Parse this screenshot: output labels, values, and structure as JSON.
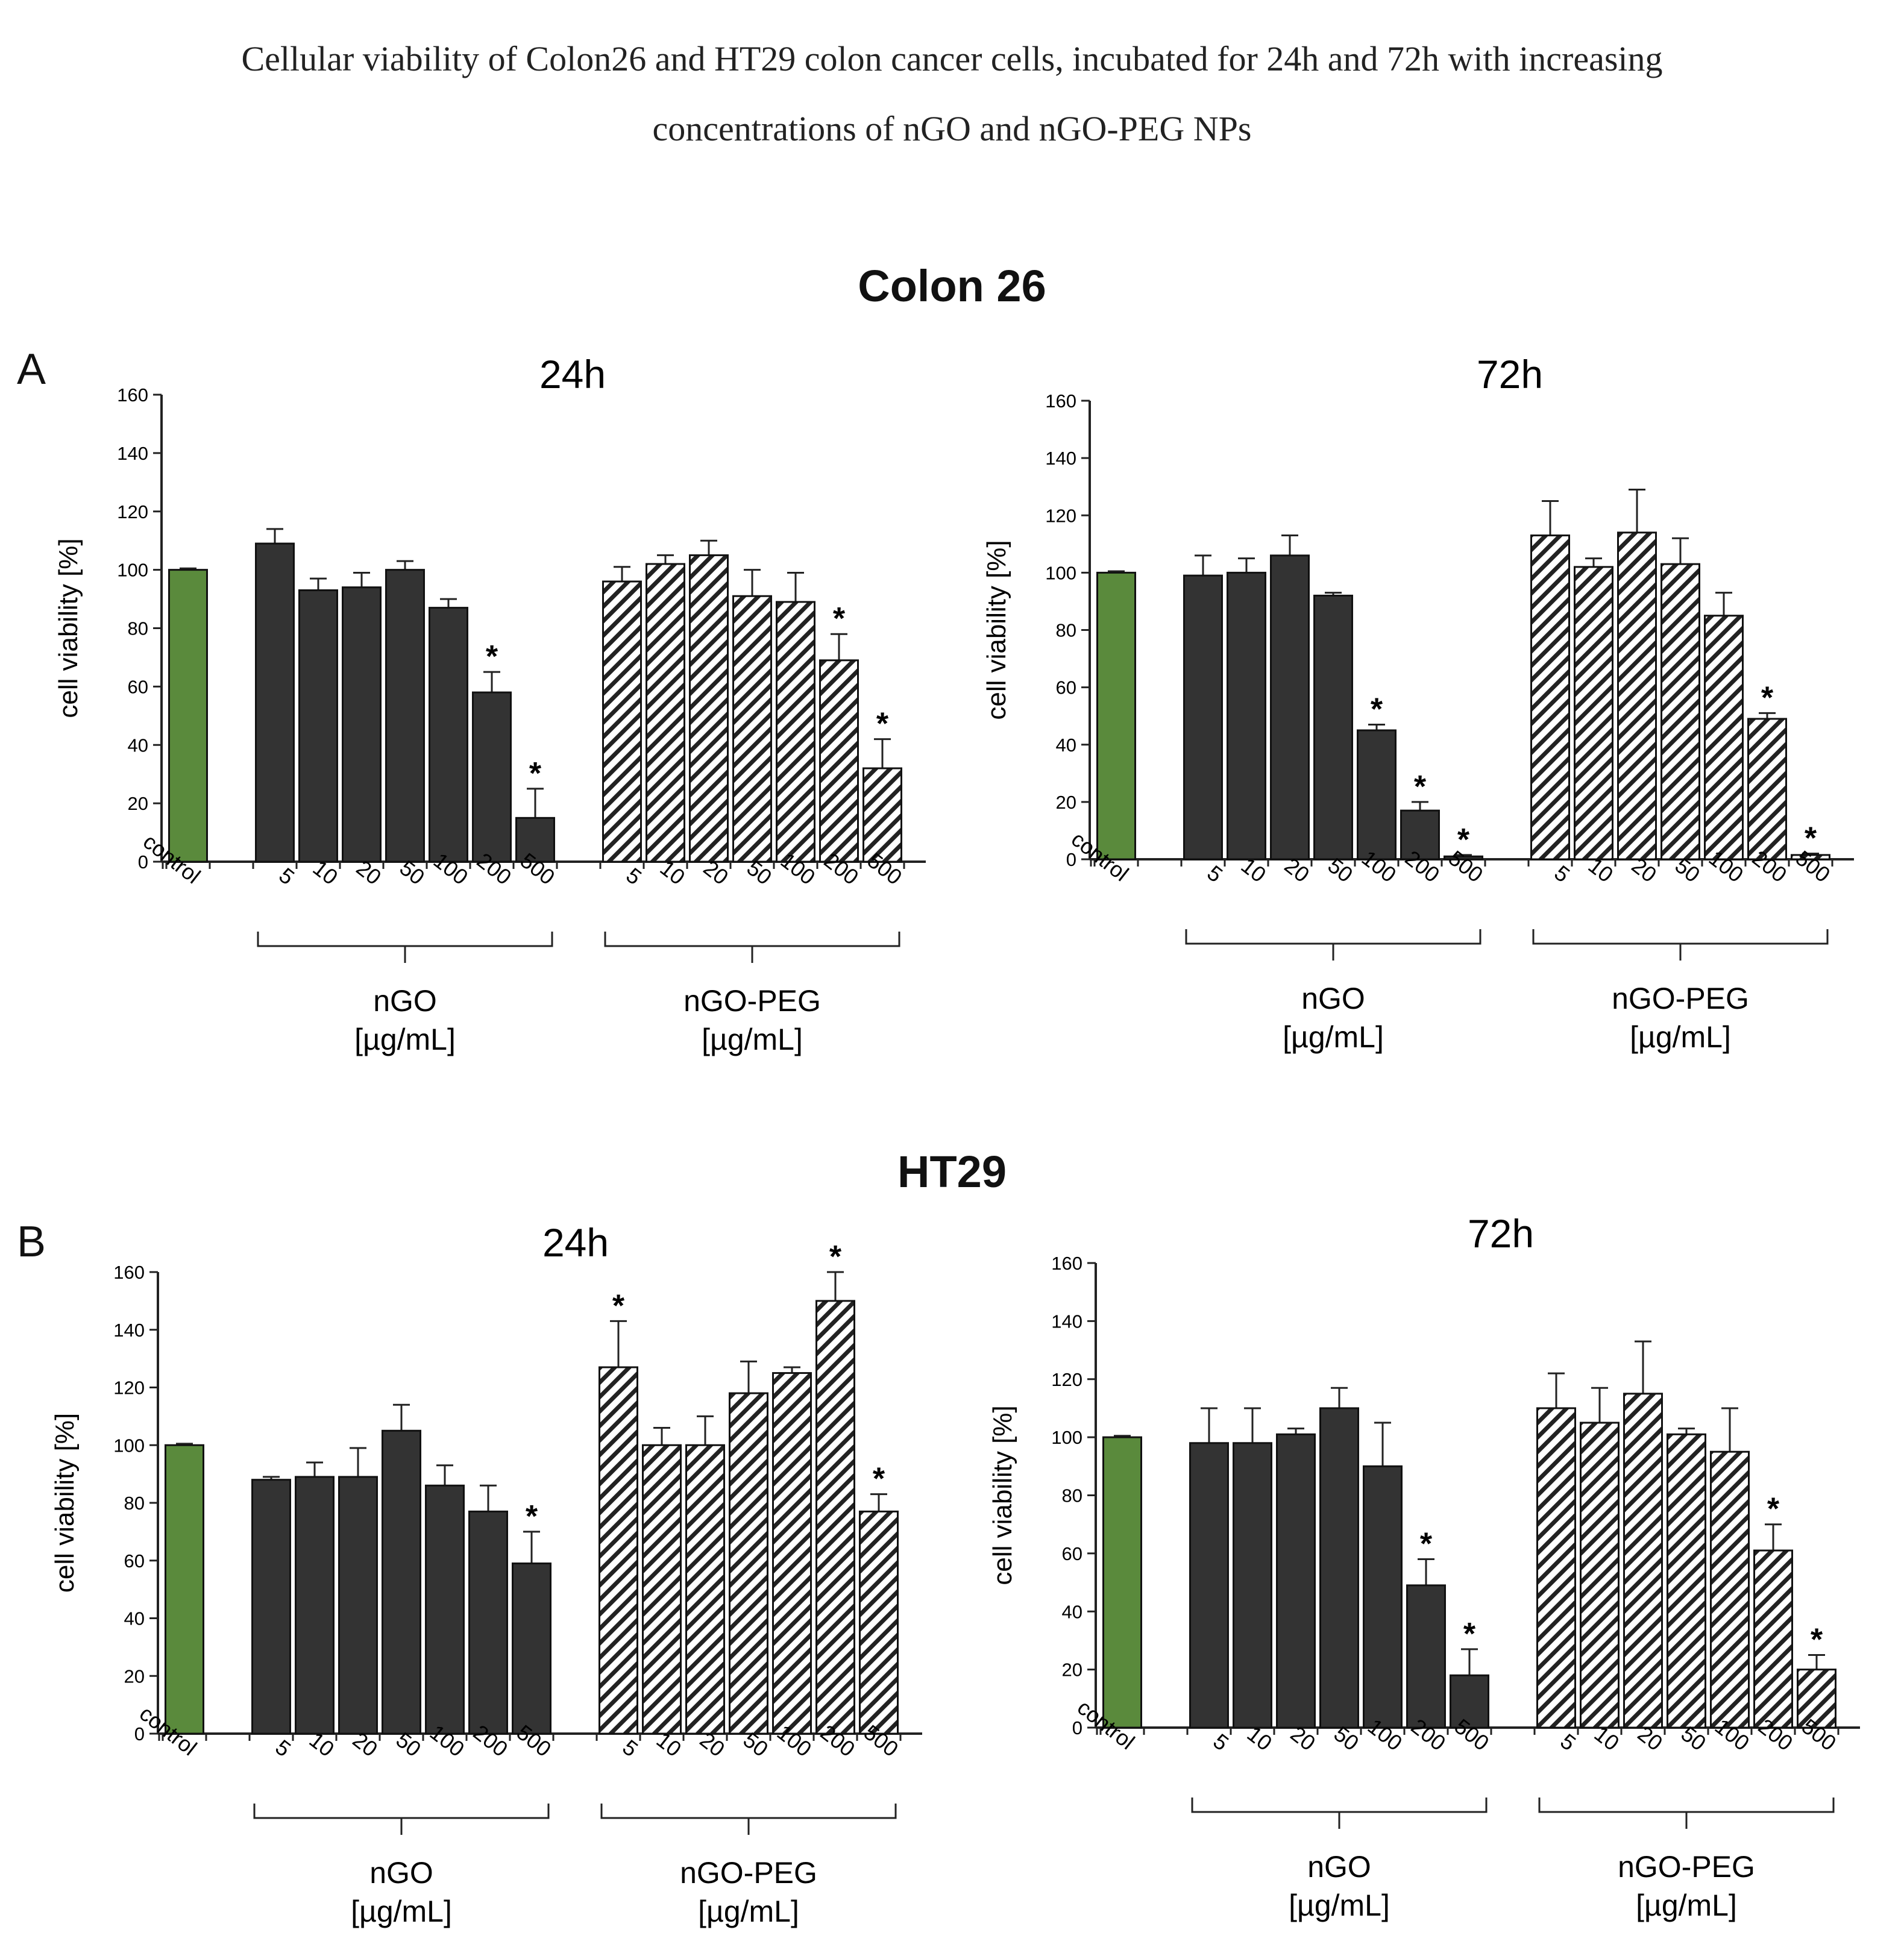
{
  "figure_title": [
    "Cellular viability of Colon26 and HT29 colon cancer cells, incubated for 24h and 72h with increasing",
    "concentrations of nGO and nGO-PEG NPs"
  ],
  "sections": [
    {
      "label": "A",
      "title": "Colon 26"
    },
    {
      "label": "B",
      "title": "HT29"
    }
  ],
  "colors": {
    "control": "#5a8a3c",
    "nGO": "#333333",
    "nGO_PEG_fill": "#ffffff",
    "nGO_PEG_hatch": "#222222",
    "axis": "#222222"
  },
  "chart_data": [
    {
      "id": "colon26-24h",
      "type": "bar",
      "title": "24h",
      "ylabel": "cell viability [%]",
      "ylim": [
        0,
        160
      ],
      "yticks": [
        "0",
        "20",
        "40",
        "60",
        "80",
        "100",
        "120",
        "140",
        "160"
      ],
      "control": {
        "label": "control",
        "value": 100,
        "err": 0.5
      },
      "groups": [
        {
          "name": "nGO",
          "unit": "[µg/mL]",
          "pattern": "solid",
          "categories": [
            "5",
            "10",
            "20",
            "50",
            "100",
            "200",
            "500"
          ],
          "values": [
            109,
            93,
            94,
            100,
            87,
            58,
            15
          ],
          "errors": [
            5,
            4,
            5,
            3,
            3,
            7,
            10
          ],
          "significant": [
            false,
            false,
            false,
            false,
            false,
            true,
            true
          ]
        },
        {
          "name": "nGO-PEG",
          "unit": "[µg/mL]",
          "pattern": "hatch",
          "categories": [
            "5",
            "10",
            "20",
            "50",
            "100",
            "200",
            "500"
          ],
          "values": [
            96,
            102,
            105,
            91,
            89,
            69,
            32
          ],
          "errors": [
            5,
            3,
            5,
            9,
            10,
            9,
            10
          ],
          "significant": [
            false,
            false,
            false,
            false,
            false,
            true,
            true
          ]
        }
      ]
    },
    {
      "id": "colon26-72h",
      "type": "bar",
      "title": "72h",
      "ylabel": "cell viability [%]",
      "ylim": [
        0,
        160
      ],
      "yticks": [
        "0",
        "20",
        "40",
        "60",
        "80",
        "100",
        "120",
        "140",
        "160"
      ],
      "control": {
        "label": "control",
        "value": 100,
        "err": 0.5
      },
      "groups": [
        {
          "name": "nGO",
          "unit": "[µg/mL]",
          "pattern": "solid",
          "categories": [
            "5",
            "10",
            "20",
            "50",
            "100",
            "200",
            "500"
          ],
          "values": [
            99,
            100,
            106,
            92,
            45,
            17,
            1
          ],
          "errors": [
            7,
            5,
            7,
            1,
            2,
            3,
            0.5
          ],
          "significant": [
            false,
            false,
            false,
            false,
            true,
            true,
            true
          ]
        },
        {
          "name": "nGO-PEG",
          "unit": "[µg/mL]",
          "pattern": "hatch",
          "categories": [
            "5",
            "10",
            "20",
            "50",
            "100",
            "200",
            "500"
          ],
          "values": [
            113,
            102,
            114,
            103,
            85,
            49,
            1.5
          ],
          "errors": [
            12,
            3,
            15,
            9,
            8,
            2,
            0.5
          ],
          "significant": [
            false,
            false,
            false,
            false,
            false,
            true,
            true
          ]
        }
      ]
    },
    {
      "id": "ht29-24h",
      "type": "bar",
      "title": "24h",
      "ylabel": "cell viability [%]",
      "ylim": [
        0,
        160
      ],
      "yticks": [
        "0",
        "20",
        "40",
        "60",
        "80",
        "100",
        "120",
        "140",
        "160"
      ],
      "control": {
        "label": "control",
        "value": 100,
        "err": 0.5
      },
      "groups": [
        {
          "name": "nGO",
          "unit": "[µg/mL]",
          "pattern": "solid",
          "categories": [
            "5",
            "10",
            "20",
            "50",
            "100",
            "200",
            "500"
          ],
          "values": [
            88,
            89,
            89,
            105,
            86,
            77,
            59
          ],
          "errors": [
            1,
            5,
            10,
            9,
            7,
            9,
            11
          ],
          "significant": [
            false,
            false,
            false,
            false,
            false,
            false,
            true
          ]
        },
        {
          "name": "nGO-PEG",
          "unit": "[µg/mL]",
          "pattern": "hatch",
          "categories": [
            "5",
            "10",
            "20",
            "50",
            "100",
            "200",
            "500"
          ],
          "values": [
            127,
            100,
            100,
            118,
            125,
            150,
            77
          ],
          "errors": [
            16,
            6,
            10,
            11,
            2,
            10,
            6
          ],
          "significant": [
            true,
            false,
            false,
            false,
            false,
            true,
            true
          ]
        }
      ]
    },
    {
      "id": "ht29-72h",
      "type": "bar",
      "title": "72h",
      "ylabel": "cell viability [%]",
      "ylim": [
        0,
        160
      ],
      "yticks": [
        "0",
        "20",
        "40",
        "60",
        "80",
        "100",
        "120",
        "140",
        "160"
      ],
      "control": {
        "label": "control",
        "value": 100,
        "err": 0.5
      },
      "groups": [
        {
          "name": "nGO",
          "unit": "[µg/mL]",
          "pattern": "solid",
          "categories": [
            "5",
            "10",
            "20",
            "50",
            "100",
            "200",
            "500"
          ],
          "values": [
            98,
            98,
            101,
            110,
            90,
            49,
            18
          ],
          "errors": [
            12,
            12,
            2,
            7,
            15,
            9,
            9
          ],
          "significant": [
            false,
            false,
            false,
            false,
            false,
            true,
            true
          ]
        },
        {
          "name": "nGO-PEG",
          "unit": "[µg/mL]",
          "pattern": "hatch",
          "categories": [
            "5",
            "10",
            "20",
            "50",
            "100",
            "200",
            "500"
          ],
          "values": [
            110,
            105,
            115,
            101,
            95,
            61,
            20
          ],
          "errors": [
            12,
            12,
            18,
            2,
            15,
            9,
            5
          ],
          "significant": [
            false,
            false,
            false,
            false,
            false,
            true,
            true
          ]
        }
      ]
    }
  ]
}
